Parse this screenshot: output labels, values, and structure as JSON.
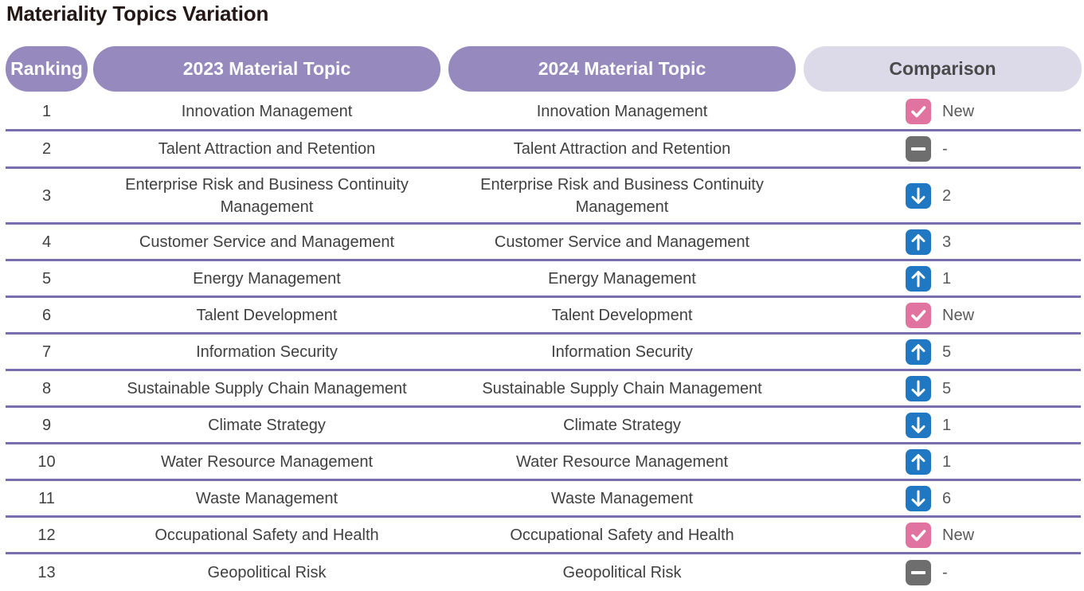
{
  "title": "Materiality Topics Variation",
  "headers": {
    "ranking": "Ranking",
    "topic_2023": "2023 Material Topic",
    "topic_2024": "2024 Material Topic",
    "comparison": "Comparison"
  },
  "colors": {
    "header_purple": "#9589bd",
    "header_light": "#dcd9e9",
    "row_divider": "#7a6fae",
    "new_icon": "#e0739f",
    "same_icon": "#6e6e6e",
    "arrow_icon": "#1f78c1"
  },
  "rows": [
    {
      "rank": "1",
      "topic_2023": "Innovation Management",
      "topic_2024": "Innovation Management",
      "icon": "check-icon",
      "change": "New"
    },
    {
      "rank": "2",
      "topic_2023": "Talent Attraction and Retention",
      "topic_2024": "Talent Attraction and Retention",
      "icon": "minus-icon",
      "change": "-"
    },
    {
      "rank": "3",
      "topic_2023": "Enterprise Risk and Business Continuity Management",
      "topic_2024": "Enterprise Risk and Business Continuity Management",
      "icon": "arrow-down-icon",
      "change": "2"
    },
    {
      "rank": "4",
      "topic_2023": "Customer Service and Management",
      "topic_2024": "Customer Service and Management",
      "icon": "arrow-up-icon",
      "change": "3"
    },
    {
      "rank": "5",
      "topic_2023": "Energy Management",
      "topic_2024": "Energy Management",
      "icon": "arrow-up-icon",
      "change": "1"
    },
    {
      "rank": "6",
      "topic_2023": "Talent Development",
      "topic_2024": "Talent Development",
      "icon": "check-icon",
      "change": "New"
    },
    {
      "rank": "7",
      "topic_2023": "Information Security",
      "topic_2024": "Information Security",
      "icon": "arrow-up-icon",
      "change": "5"
    },
    {
      "rank": "8",
      "topic_2023": "Sustainable Supply Chain Management",
      "topic_2024": "Sustainable Supply Chain Management",
      "icon": "arrow-down-icon",
      "change": "5"
    },
    {
      "rank": "9",
      "topic_2023": "Climate Strategy",
      "topic_2024": "Climate Strategy",
      "icon": "arrow-down-icon",
      "change": "1"
    },
    {
      "rank": "10",
      "topic_2023": "Water Resource Management",
      "topic_2024": "Water Resource Management",
      "icon": "arrow-up-icon",
      "change": "1"
    },
    {
      "rank": "11",
      "topic_2023": "Waste Management",
      "topic_2024": "Waste Management",
      "icon": "arrow-down-icon",
      "change": "6"
    },
    {
      "rank": "12",
      "topic_2023": "Occupational Safety and Health",
      "topic_2024": "Occupational Safety and Health",
      "icon": "check-icon",
      "change": "New"
    },
    {
      "rank": "13",
      "topic_2023": "Geopolitical Risk",
      "topic_2024": "Geopolitical Risk",
      "icon": "minus-icon",
      "change": "-"
    }
  ]
}
